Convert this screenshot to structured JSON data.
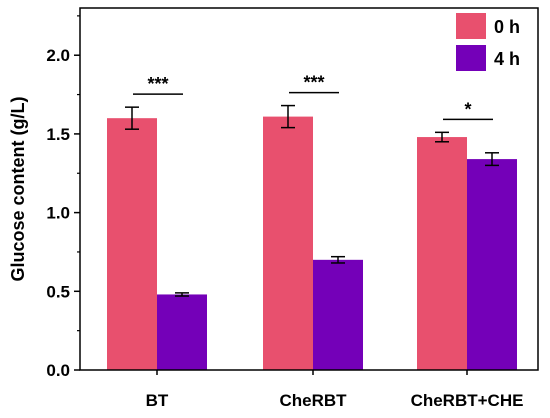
{
  "chart_data": {
    "type": "bar",
    "categories": [
      "BT",
      "CheRBT",
      "CheRBT+CHE"
    ],
    "series": [
      {
        "name": "0 h",
        "values": [
          1.6,
          1.61,
          1.48
        ],
        "errors": [
          0.07,
          0.07,
          0.03
        ],
        "color": "#E8506E"
      },
      {
        "name": "4 h",
        "values": [
          0.48,
          0.7,
          1.34
        ],
        "errors": [
          0.01,
          0.02,
          0.04
        ],
        "color": "#7400B8"
      }
    ],
    "significance": [
      "***",
      "***",
      "*"
    ],
    "ylabel": "Glucose content (g/L)",
    "xlabel": "",
    "ylim": [
      0,
      2.3
    ],
    "yticks": [
      0.0,
      0.5,
      1.0,
      1.5,
      2.0
    ],
    "ytick_labels": [
      "0.0",
      "0.5",
      "1.0",
      "1.5",
      "2.0"
    ],
    "legend_position": "top-right",
    "grid": false
  }
}
